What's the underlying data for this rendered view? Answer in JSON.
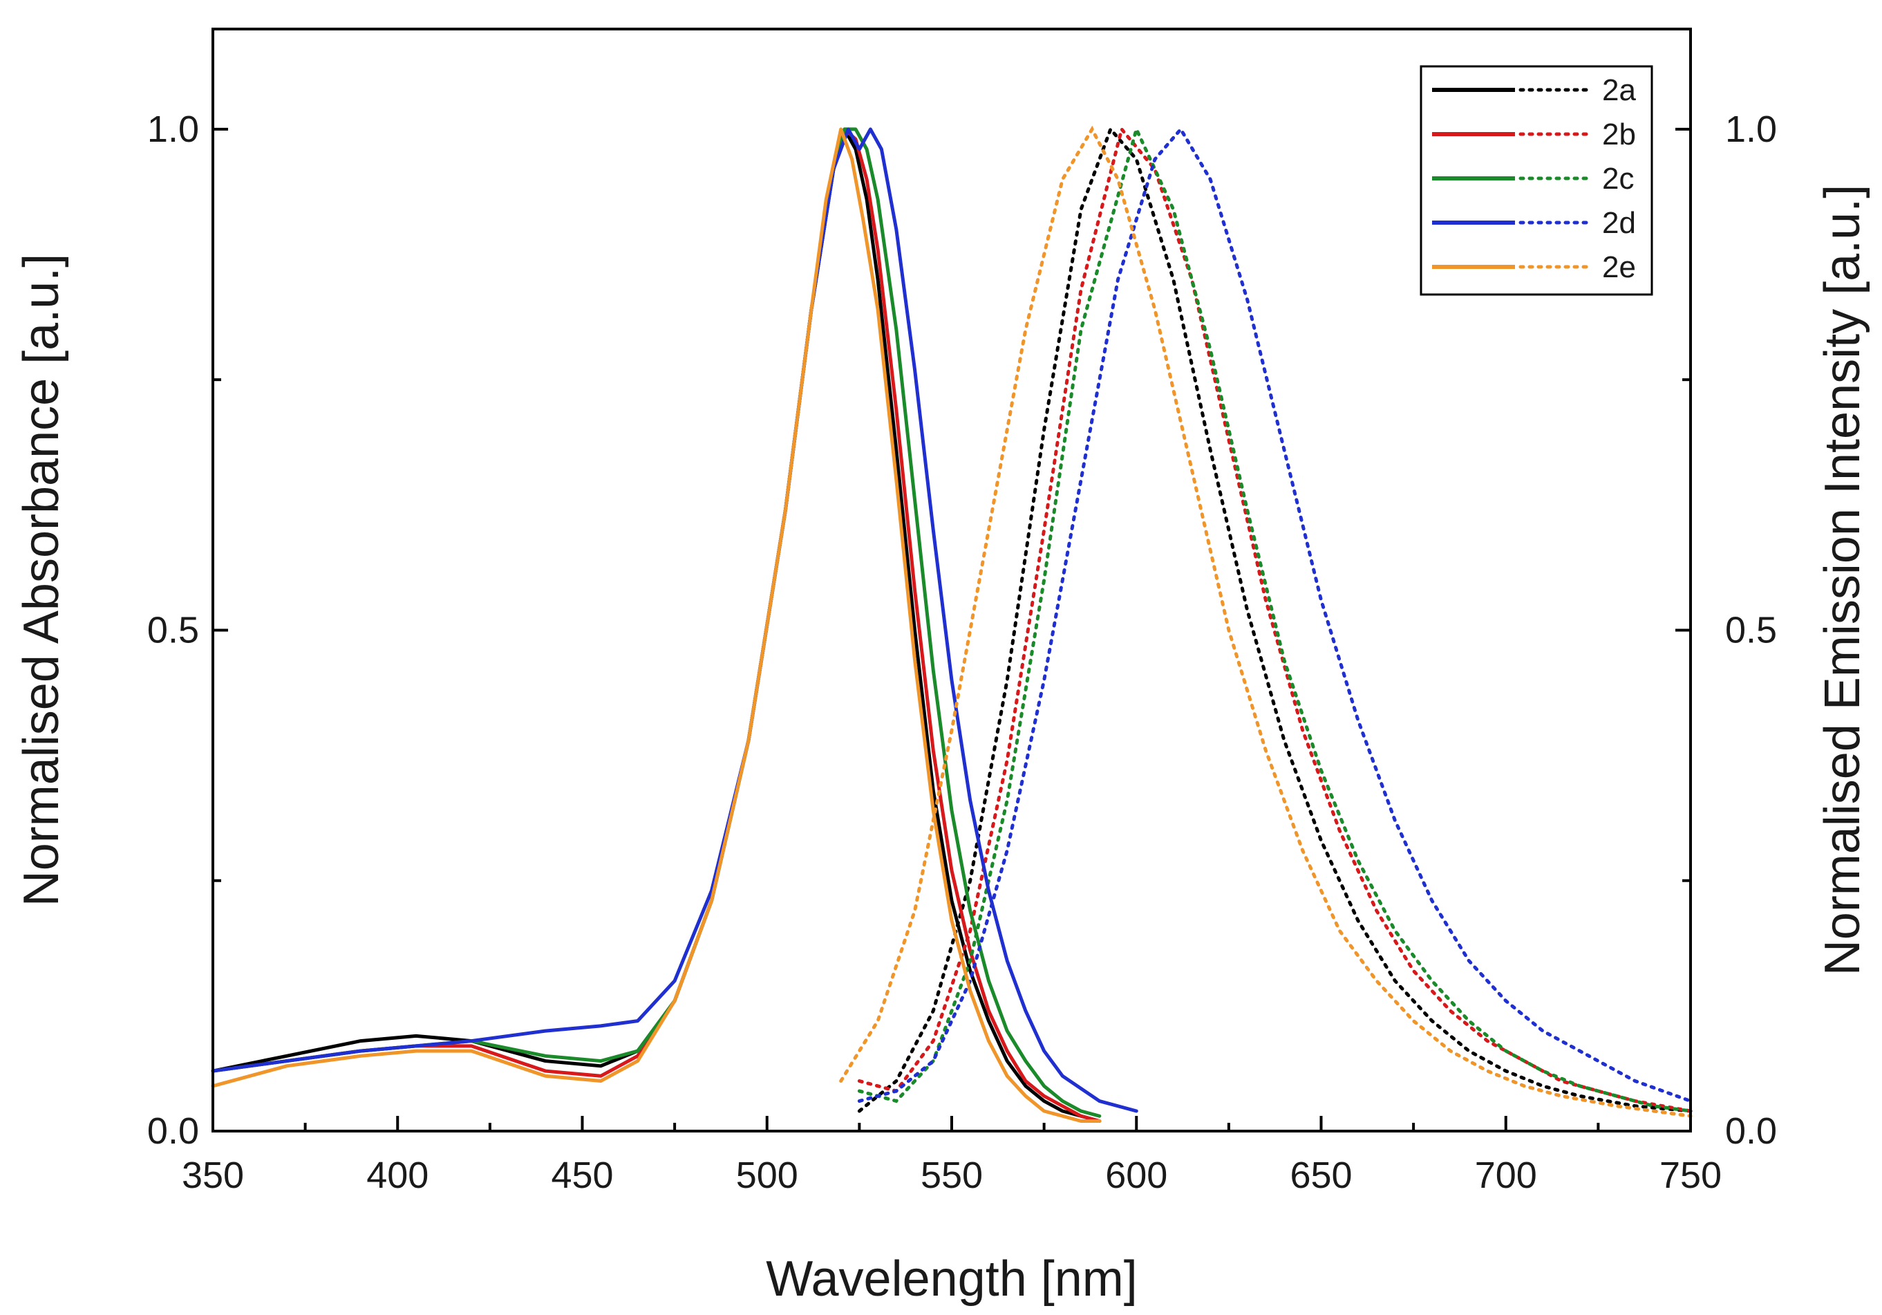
{
  "chart_data": {
    "type": "line",
    "title": "",
    "xlabel": "Wavelength [nm]",
    "ylabel_left": "Normalised Absorbance [a.u.]",
    "ylabel_right": "Normalised Emission Intensity [a.u.]",
    "xlim": [
      350,
      750
    ],
    "ylim_left": [
      0.0,
      1.1
    ],
    "ylim_right": [
      0.0,
      1.1
    ],
    "x_ticks": [
      350,
      400,
      450,
      500,
      550,
      600,
      650,
      700,
      750
    ],
    "x_tick_labels": [
      "350",
      "400",
      "450",
      "500",
      "550",
      "600",
      "650",
      "700",
      "750"
    ],
    "y_ticks": [
      0.0,
      0.5,
      1.0
    ],
    "y_tick_labels_left": [
      "0.0",
      "0.5",
      "1.0"
    ],
    "y_tick_labels_right": [
      "0.0",
      "0.5",
      "1.0"
    ],
    "grid": false,
    "legend_position": "top-right",
    "series": [
      {
        "name": "2a",
        "color": "#000000",
        "absorbance": {
          "x": [
            350,
            370,
            390,
            405,
            420,
            440,
            455,
            465,
            475,
            485,
            495,
            505,
            512,
            518,
            521,
            524,
            527,
            530,
            535,
            540,
            545,
            550,
            555,
            560,
            565,
            570,
            575,
            580,
            585,
            590
          ],
          "y": [
            0.06,
            0.075,
            0.09,
            0.095,
            0.09,
            0.07,
            0.065,
            0.08,
            0.13,
            0.23,
            0.39,
            0.62,
            0.82,
            0.96,
            1.0,
            0.98,
            0.93,
            0.85,
            0.68,
            0.5,
            0.34,
            0.23,
            0.16,
            0.11,
            0.07,
            0.045,
            0.03,
            0.02,
            0.015,
            0.01
          ]
        },
        "emission": {
          "x": [
            525,
            535,
            545,
            555,
            565,
            575,
            585,
            593,
            600,
            610,
            620,
            630,
            640,
            650,
            660,
            670,
            680,
            690,
            700,
            710,
            720,
            735,
            750
          ],
          "y": [
            0.02,
            0.05,
            0.12,
            0.25,
            0.45,
            0.7,
            0.92,
            1.0,
            0.97,
            0.85,
            0.68,
            0.52,
            0.39,
            0.29,
            0.21,
            0.15,
            0.11,
            0.08,
            0.06,
            0.045,
            0.035,
            0.025,
            0.02
          ]
        }
      },
      {
        "name": "2b",
        "color": "#d7191c",
        "absorbance": {
          "x": [
            350,
            370,
            390,
            405,
            420,
            440,
            455,
            465,
            475,
            485,
            495,
            505,
            512,
            518,
            521,
            524,
            527,
            530,
            535,
            540,
            545,
            550,
            555,
            560,
            565,
            570,
            575,
            580,
            585,
            590
          ],
          "y": [
            0.06,
            0.07,
            0.08,
            0.085,
            0.085,
            0.06,
            0.055,
            0.075,
            0.13,
            0.23,
            0.39,
            0.62,
            0.82,
            0.96,
            1.0,
            0.99,
            0.95,
            0.88,
            0.72,
            0.54,
            0.38,
            0.26,
            0.18,
            0.12,
            0.08,
            0.05,
            0.035,
            0.025,
            0.015,
            0.01
          ]
        },
        "emission": {
          "x": [
            525,
            535,
            545,
            555,
            565,
            575,
            585,
            596,
            605,
            615,
            625,
            635,
            645,
            655,
            665,
            675,
            685,
            695,
            705,
            715,
            725,
            735,
            750
          ],
          "y": [
            0.05,
            0.04,
            0.09,
            0.2,
            0.37,
            0.6,
            0.84,
            1.0,
            0.96,
            0.85,
            0.69,
            0.53,
            0.4,
            0.3,
            0.22,
            0.16,
            0.12,
            0.09,
            0.07,
            0.05,
            0.04,
            0.03,
            0.02
          ]
        }
      },
      {
        "name": "2c",
        "color": "#1a8a2a",
        "absorbance": {
          "x": [
            350,
            370,
            390,
            405,
            420,
            440,
            455,
            465,
            475,
            485,
            495,
            505,
            512,
            518,
            521,
            524,
            527,
            530,
            535,
            540,
            545,
            550,
            555,
            560,
            565,
            570,
            575,
            580,
            585,
            590
          ],
          "y": [
            0.06,
            0.07,
            0.08,
            0.085,
            0.09,
            0.075,
            0.07,
            0.08,
            0.13,
            0.23,
            0.39,
            0.62,
            0.82,
            0.96,
            1.0,
            1.0,
            0.98,
            0.93,
            0.8,
            0.63,
            0.46,
            0.32,
            0.22,
            0.15,
            0.1,
            0.07,
            0.045,
            0.03,
            0.02,
            0.015
          ]
        },
        "emission": {
          "x": [
            525,
            535,
            545,
            555,
            565,
            575,
            585,
            600,
            610,
            620,
            630,
            640,
            650,
            660,
            670,
            680,
            690,
            700,
            710,
            720,
            730,
            740,
            750
          ],
          "y": [
            0.04,
            0.03,
            0.07,
            0.17,
            0.33,
            0.55,
            0.8,
            1.0,
            0.92,
            0.78,
            0.62,
            0.47,
            0.36,
            0.27,
            0.2,
            0.15,
            0.11,
            0.08,
            0.06,
            0.045,
            0.035,
            0.025,
            0.02
          ]
        }
      },
      {
        "name": "2d",
        "color": "#1f2fd0",
        "absorbance": {
          "x": [
            350,
            370,
            390,
            405,
            420,
            440,
            455,
            465,
            475,
            485,
            495,
            505,
            512,
            518,
            522,
            525,
            528,
            531,
            535,
            540,
            545,
            550,
            555,
            560,
            565,
            570,
            575,
            580,
            590,
            600
          ],
          "y": [
            0.06,
            0.07,
            0.08,
            0.085,
            0.09,
            0.1,
            0.105,
            0.11,
            0.15,
            0.24,
            0.39,
            0.62,
            0.82,
            0.96,
            1.0,
            0.98,
            1.0,
            0.98,
            0.9,
            0.76,
            0.6,
            0.45,
            0.33,
            0.24,
            0.17,
            0.12,
            0.08,
            0.055,
            0.03,
            0.02
          ]
        },
        "emission": {
          "x": [
            525,
            535,
            545,
            555,
            565,
            575,
            585,
            595,
            605,
            612,
            620,
            630,
            640,
            650,
            660,
            670,
            680,
            690,
            700,
            710,
            720,
            735,
            750
          ],
          "y": [
            0.03,
            0.04,
            0.07,
            0.15,
            0.28,
            0.45,
            0.65,
            0.85,
            0.97,
            1.0,
            0.95,
            0.83,
            0.68,
            0.53,
            0.41,
            0.31,
            0.23,
            0.17,
            0.13,
            0.1,
            0.08,
            0.05,
            0.03
          ]
        }
      },
      {
        "name": "2e",
        "color": "#f0952a",
        "absorbance": {
          "x": [
            350,
            370,
            390,
            405,
            420,
            440,
            455,
            465,
            475,
            485,
            495,
            505,
            512,
            516,
            520,
            523,
            526,
            530,
            535,
            540,
            545,
            550,
            555,
            560,
            565,
            570,
            575,
            580,
            585,
            590
          ],
          "y": [
            0.045,
            0.065,
            0.075,
            0.08,
            0.08,
            0.055,
            0.05,
            0.07,
            0.13,
            0.23,
            0.39,
            0.62,
            0.82,
            0.93,
            1.0,
            0.97,
            0.91,
            0.82,
            0.65,
            0.47,
            0.32,
            0.21,
            0.14,
            0.09,
            0.055,
            0.035,
            0.02,
            0.015,
            0.01,
            0.01
          ]
        },
        "emission": {
          "x": [
            520,
            530,
            540,
            550,
            560,
            570,
            580,
            588,
            595,
            605,
            615,
            625,
            635,
            645,
            655,
            665,
            675,
            685,
            695,
            705,
            715,
            730,
            750
          ],
          "y": [
            0.05,
            0.11,
            0.22,
            0.4,
            0.6,
            0.8,
            0.95,
            1.0,
            0.95,
            0.82,
            0.66,
            0.5,
            0.38,
            0.28,
            0.2,
            0.15,
            0.11,
            0.08,
            0.06,
            0.045,
            0.035,
            0.025,
            0.015
          ]
        }
      }
    ]
  }
}
